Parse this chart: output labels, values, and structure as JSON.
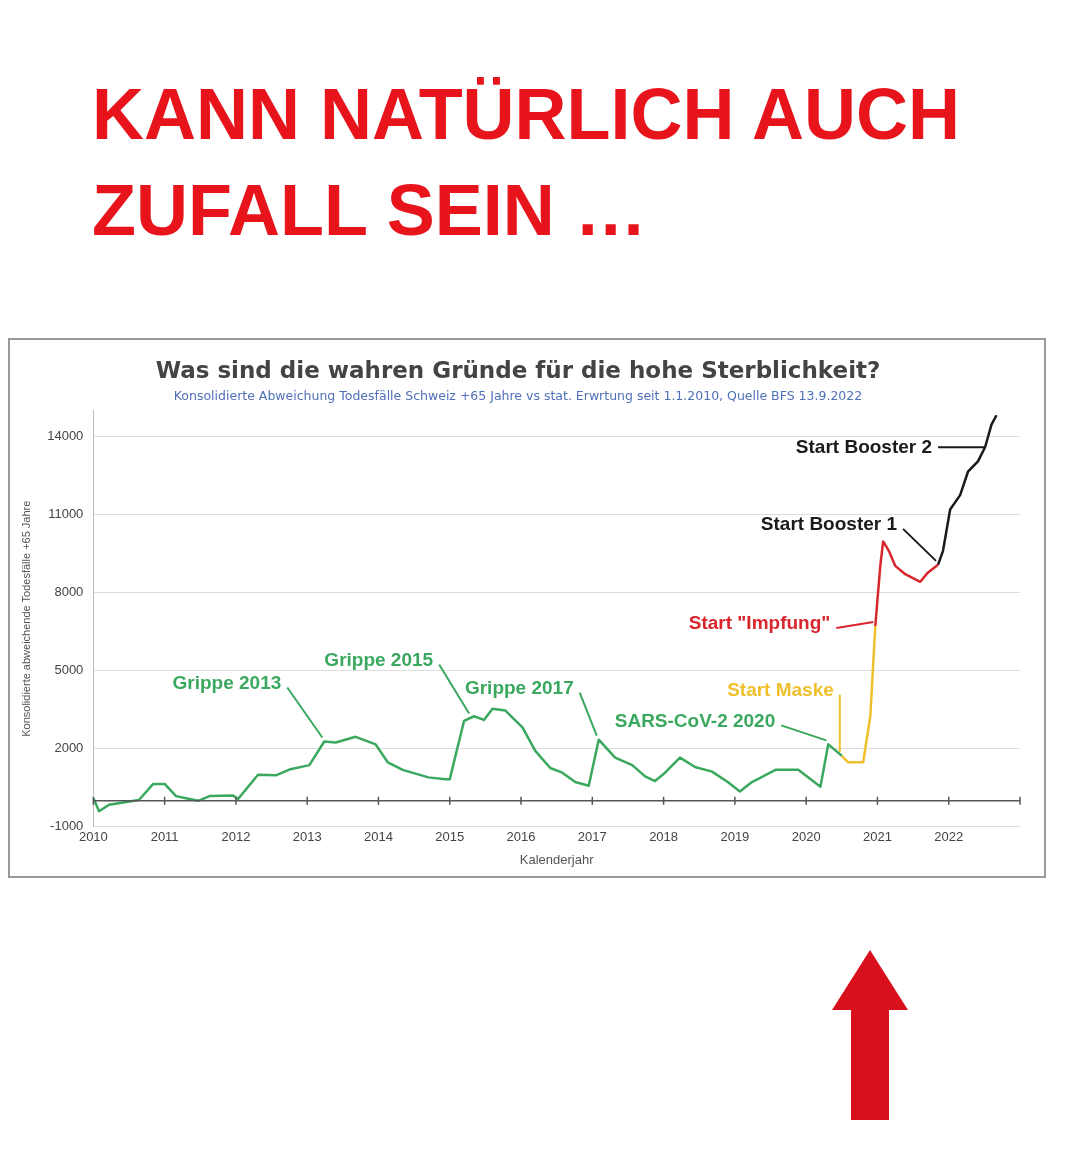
{
  "chart_data": {
    "type": "line",
    "title": "KANN NATÜRLICH AUCH ZUFALL SEIN …",
    "subtitle": "Was sind die wahren Gründe für die hohe Sterblichkeit?",
    "xlabel": "Kalenderjahr",
    "ylabel": "Konsolidierte abweichende Todesfälle +65 Jahre",
    "xlim": [
      2010,
      2023
    ],
    "xticks": [
      2010,
      2011,
      2012,
      2013,
      2014,
      2015,
      2016,
      2017,
      2018,
      2019,
      2020,
      2021,
      2022
    ],
    "ylim": [
      -1000,
      15000
    ],
    "yticks": [
      -1000,
      2000,
      5000,
      8000,
      11000,
      14000
    ],
    "grid": "y",
    "legend": false,
    "marker": "none",
    "line_style": "solid",
    "series": [
      {
        "color": "#3aa85e",
        "x": [
          2010.0,
          2010.08,
          2010.22,
          2010.64,
          2010.84,
          2011.0,
          2011.16,
          2011.3,
          2011.47,
          2011.63,
          2011.96,
          2012.03,
          2012.31,
          2012.56,
          2012.75,
          2013.03,
          2013.24,
          2013.4,
          2013.68,
          2013.96,
          2014.13,
          2014.34,
          2014.7,
          2014.94,
          2015.0,
          2015.2,
          2015.34,
          2015.48,
          2015.6,
          2015.78,
          2016.02,
          2016.2,
          2016.41,
          2016.58,
          2016.76,
          2016.95,
          2017.09,
          2017.32,
          2017.56,
          2017.74,
          2017.88,
          2018.02,
          2018.23,
          2018.44,
          2018.68,
          2018.9,
          2019.07,
          2019.24,
          2019.57,
          2019.89,
          2020.2,
          2020.31,
          2020.5
        ],
        "values": [
          110,
          -400,
          -150,
          30,
          650,
          650,
          180,
          100,
          0,
          180,
          200,
          70,
          1000,
          980,
          1200,
          1370,
          2280,
          2240,
          2460,
          2170,
          1480,
          1190,
          900,
          830,
          830,
          3070,
          3250,
          3110,
          3540,
          3470,
          2820,
          1920,
          1260,
          1080,
          720,
          580,
          2350,
          1660,
          1370,
          940,
          760,
          1080,
          1660,
          1300,
          1120,
          720,
          360,
          720,
          1190,
          1190,
          540,
          2170,
          1730
        ]
      },
      {
        "color": "#f0c02c",
        "x": [
          2020.5,
          2020.59,
          2020.8,
          2020.9,
          2020.97
        ],
        "values": [
          1730,
          1480,
          1480,
          3250,
          6720
        ]
      },
      {
        "color": "#d8262c",
        "x": [
          2020.97,
          2021.04,
          2021.08,
          2021.16,
          2021.25,
          2021.39,
          2021.6,
          2021.71,
          2021.85
        ],
        "values": [
          6720,
          9030,
          9970,
          9610,
          9030,
          8710,
          8420,
          8780,
          9070
        ]
      },
      {
        "color": "#1a1a1a",
        "x": [
          2021.85,
          2021.92,
          2022.02,
          2022.16,
          2022.27,
          2022.41,
          2022.51,
          2022.6,
          2022.67
        ],
        "values": [
          9070,
          9610,
          11200,
          11750,
          12650,
          13050,
          13590,
          14460,
          14820
        ]
      }
    ],
    "annotations": [
      "Konsolidierte Abweichung Todesfälle Schweiz +65 Jahre vs stat. Erwrtung seit 1.1.2010, Quelle BFS 13.9.2022",
      {
        "text": "Grippe 2013",
        "x": 2013.24,
        "y": 2280
      },
      {
        "text": "Grippe 2015",
        "x": 2015.3,
        "y": 3200
      },
      {
        "text": "Grippe 2017",
        "x": 2017.09,
        "y": 2350
      },
      {
        "text": "SARS-CoV-2 2020",
        "x": 2020.31,
        "y": 2170
      },
      {
        "text": "Start Maske",
        "x": 2020.5,
        "y": 1730
      },
      {
        "text": "Start \"Impfung\"",
        "x": 2020.97,
        "y": 6720
      },
      {
        "text": "Start Booster 1",
        "x": 2021.85,
        "y": 9070
      },
      {
        "text": "Start Booster 2",
        "x": 2022.51,
        "y": 13590
      }
    ]
  }
}
